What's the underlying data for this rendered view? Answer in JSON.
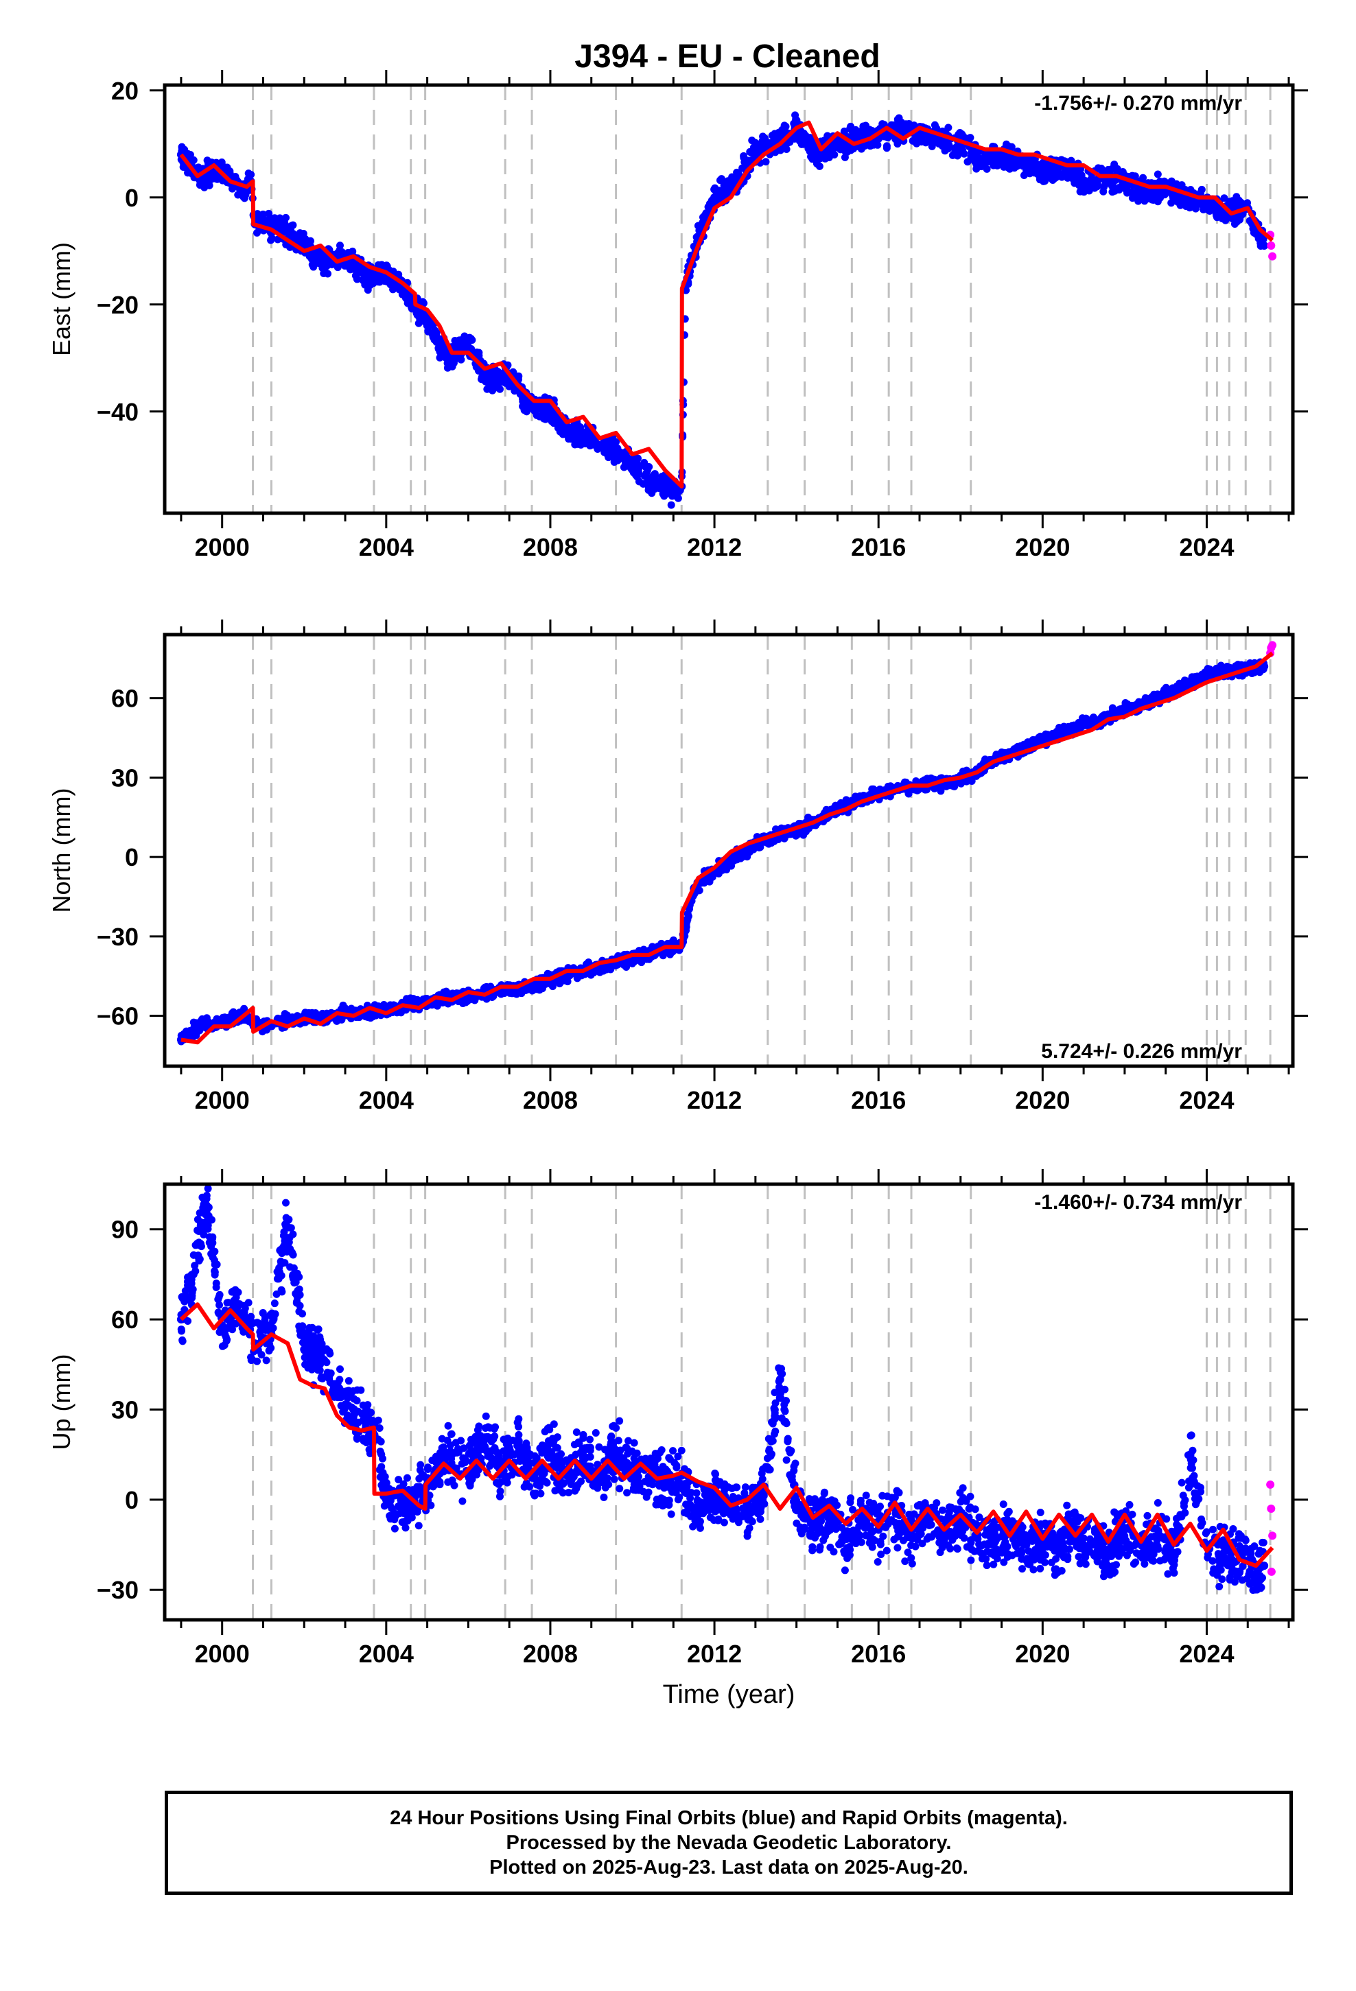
{
  "chart_data": [
    {
      "type": "scatter",
      "title": "J394  - EU - Cleaned",
      "ylabel": "East (mm)",
      "xlabel": "",
      "rate_label": "-1.756+/- 0.270 mm/yr",
      "rate_position": "top-right",
      "xlim": [
        1998.6,
        2026.1
      ],
      "ylim": [
        -59,
        21
      ],
      "xticks": [
        "2000",
        "2004",
        "2008",
        "2012",
        "2016",
        "2020",
        "2024"
      ],
      "yticks": [
        "20",
        "0",
        "−20",
        "−40"
      ],
      "ytick_values": [
        20,
        0,
        -20,
        -40
      ],
      "grid": false,
      "series": [
        {
          "color": "#0000ff",
          "kind": "points",
          "x": [
            1999.0,
            1999.5,
            2000.0,
            2000.5,
            2000.7,
            2000.8,
            2001.5,
            2002.0,
            2002.5,
            2003.0,
            2003.5,
            2004.0,
            2004.5,
            2004.7,
            2005.0,
            2005.5,
            2006.0,
            2006.5,
            2007.0,
            2007.5,
            2008.0,
            2008.5,
            2009.0,
            2009.5,
            2010.0,
            2010.5,
            2011.0,
            2011.2,
            2011.3,
            2011.6,
            2012.0,
            2012.5,
            2013.0,
            2013.5,
            2014.0,
            2014.5,
            2015.0,
            2015.5,
            2016.0,
            2016.5,
            2017.0,
            2017.5,
            2018.0,
            2018.5,
            2019.0,
            2019.5,
            2020.0,
            2020.5,
            2021.0,
            2021.5,
            2022.0,
            2022.5,
            2023.0,
            2023.5,
            2024.0,
            2024.5,
            2025.0,
            2025.4
          ],
          "y": [
            8,
            4,
            5,
            1,
            3,
            -5,
            -6,
            -9,
            -12,
            -11,
            -15,
            -14,
            -18,
            -20,
            -23,
            -30,
            -28,
            -34,
            -33,
            -39,
            -40,
            -44,
            -45,
            -47,
            -50,
            -53,
            -55,
            -54,
            -16,
            -8,
            0,
            2,
            9,
            10,
            13,
            8,
            10,
            11,
            11,
            13,
            12,
            11,
            10,
            7,
            8,
            7,
            5,
            6,
            3,
            4,
            3,
            1,
            2,
            0,
            -1,
            -3,
            -2,
            -9
          ]
        },
        {
          "color": "#ff00ff",
          "kind": "points",
          "x": [
            2025.55,
            2025.57,
            2025.6
          ],
          "y": [
            -7,
            -9,
            -11
          ]
        },
        {
          "color": "#ff0000",
          "kind": "model_line",
          "x": [
            1999.0,
            1999.4,
            1999.8,
            2000.2,
            2000.6,
            2000.75,
            2000.76,
            2001.2,
            2001.6,
            2002.0,
            2002.4,
            2002.8,
            2003.2,
            2003.6,
            2004.0,
            2004.4,
            2004.7,
            2004.71,
            2005.0,
            2005.3,
            2005.6,
            2006.0,
            2006.4,
            2006.8,
            2007.2,
            2007.6,
            2008.0,
            2008.4,
            2008.8,
            2009.2,
            2009.6,
            2010.0,
            2010.4,
            2010.8,
            2011.2,
            2011.21,
            2011.6,
            2012.0,
            2012.4,
            2012.8,
            2013.2,
            2013.6,
            2014.0,
            2014.3,
            2014.6,
            2015.0,
            2015.4,
            2015.8,
            2016.2,
            2016.6,
            2017.0,
            2017.4,
            2017.8,
            2018.2,
            2018.6,
            2019.0,
            2019.4,
            2019.8,
            2020.2,
            2020.6,
            2021.0,
            2021.4,
            2021.8,
            2022.2,
            2022.6,
            2023.0,
            2023.4,
            2023.8,
            2024.2,
            2024.6,
            2025.0,
            2025.3,
            2025.6
          ],
          "y": [
            8,
            4,
            6,
            3,
            2,
            3,
            -5,
            -6,
            -8,
            -10,
            -9,
            -12,
            -11,
            -13,
            -14,
            -16,
            -18,
            -20,
            -21,
            -24,
            -29,
            -29,
            -32,
            -31,
            -35,
            -38,
            -38,
            -42,
            -41,
            -45,
            -44,
            -48,
            -47,
            -51,
            -54,
            -17,
            -9,
            -2,
            0,
            5,
            8,
            10,
            13,
            14,
            9,
            12,
            10,
            11,
            13,
            11,
            13,
            12,
            11,
            10,
            9,
            9,
            8,
            8,
            7,
            6,
            6,
            4,
            4,
            3,
            2,
            2,
            1,
            0,
            0,
            -3,
            -2,
            -6,
            -8
          ]
        }
      ],
      "breaks": [
        2000.75,
        2001.2,
        2003.7,
        2004.6,
        2004.95,
        2006.9,
        2007.55,
        2009.6,
        2011.2,
        2013.3,
        2014.2,
        2015.35,
        2016.25,
        2016.8,
        2018.25,
        2024.0,
        2024.25,
        2024.55,
        2024.95,
        2025.55
      ]
    },
    {
      "type": "scatter",
      "title": "",
      "ylabel": "North (mm)",
      "xlabel": "",
      "rate_label": "5.724+/- 0.226 mm/yr",
      "rate_position": "bottom-right",
      "xlim": [
        1998.6,
        2026.1
      ],
      "ylim": [
        -79,
        84
      ],
      "xticks": [
        "2000",
        "2004",
        "2008",
        "2012",
        "2016",
        "2020",
        "2024"
      ],
      "yticks": [
        "60",
        "30",
        "0",
        "−30",
        "−60"
      ],
      "ytick_values": [
        60,
        30,
        0,
        -30,
        -60
      ],
      "grid": false,
      "series": [
        {
          "color": "#0000ff",
          "kind": "points",
          "x": [
            1999.0,
            1999.5,
            2000.0,
            2000.5,
            2001.0,
            2001.5,
            2002.0,
            2002.5,
            2003.0,
            2003.5,
            2004.0,
            2004.5,
            2005.0,
            2005.5,
            2006.0,
            2006.5,
            2007.0,
            2007.5,
            2008.0,
            2008.5,
            2009.0,
            2009.5,
            2010.0,
            2010.5,
            2011.0,
            2011.2,
            2011.5,
            2012.0,
            2012.5,
            2013.0,
            2013.5,
            2014.0,
            2014.5,
            2015.0,
            2015.5,
            2016.0,
            2016.5,
            2017.0,
            2017.5,
            2018.0,
            2018.5,
            2019.0,
            2019.5,
            2020.0,
            2020.5,
            2021.0,
            2021.5,
            2022.0,
            2022.5,
            2023.0,
            2023.5,
            2024.0,
            2024.5,
            2025.0,
            2025.4
          ],
          "y": [
            -69,
            -63,
            -63,
            -60,
            -64,
            -62,
            -61,
            -61,
            -59,
            -59,
            -58,
            -56,
            -55,
            -53,
            -53,
            -51,
            -50,
            -49,
            -46,
            -44,
            -42,
            -40,
            -38,
            -36,
            -34,
            -33,
            -12,
            -5,
            0,
            5,
            8,
            10,
            14,
            18,
            21,
            24,
            26,
            27,
            28,
            29,
            33,
            38,
            41,
            44,
            47,
            50,
            52,
            56,
            58,
            61,
            65,
            69,
            70,
            71,
            72
          ]
        },
        {
          "color": "#ff00ff",
          "kind": "points",
          "x": [
            2025.55,
            2025.57,
            2025.6
          ],
          "y": [
            77,
            79,
            80
          ]
        },
        {
          "color": "#ff0000",
          "kind": "model_line",
          "x": [
            1999.0,
            1999.4,
            1999.8,
            2000.2,
            2000.6,
            2000.75,
            2000.76,
            2001.2,
            2001.6,
            2002.0,
            2002.4,
            2002.8,
            2003.2,
            2003.6,
            2004.0,
            2004.4,
            2004.8,
            2005.2,
            2005.6,
            2006.0,
            2006.4,
            2006.8,
            2007.2,
            2007.6,
            2008.0,
            2008.4,
            2008.8,
            2009.2,
            2009.6,
            2010.0,
            2010.4,
            2010.8,
            2011.2,
            2011.21,
            2011.6,
            2012.0,
            2012.4,
            2012.8,
            2013.2,
            2013.6,
            2014.0,
            2014.4,
            2014.8,
            2015.2,
            2015.6,
            2016.0,
            2016.4,
            2016.8,
            2017.2,
            2017.6,
            2018.0,
            2018.4,
            2018.8,
            2019.2,
            2019.6,
            2020.0,
            2020.4,
            2020.8,
            2021.2,
            2021.6,
            2022.0,
            2022.4,
            2022.8,
            2023.2,
            2023.6,
            2024.0,
            2024.4,
            2024.8,
            2025.2,
            2025.6
          ],
          "y": [
            -69,
            -70,
            -64,
            -64,
            -59,
            -57,
            -66,
            -62,
            -64,
            -61,
            -63,
            -59,
            -60,
            -57,
            -59,
            -56,
            -57,
            -53,
            -54,
            -51,
            -52,
            -49,
            -49,
            -46,
            -46,
            -43,
            -43,
            -40,
            -39,
            -37,
            -37,
            -34,
            -34,
            -21,
            -8,
            -4,
            2,
            5,
            7,
            9,
            11,
            13,
            16,
            18,
            21,
            23,
            25,
            27,
            27,
            29,
            30,
            32,
            36,
            38,
            40,
            42,
            44,
            46,
            48,
            52,
            53,
            56,
            58,
            60,
            63,
            66,
            68,
            70,
            72,
            77
          ]
        }
      ],
      "breaks": [
        2000.75,
        2001.2,
        2003.7,
        2004.6,
        2004.95,
        2006.9,
        2007.55,
        2009.6,
        2011.2,
        2013.3,
        2014.2,
        2015.35,
        2016.25,
        2016.8,
        2018.25,
        2024.0,
        2024.25,
        2024.55,
        2024.95,
        2025.55
      ]
    },
    {
      "type": "scatter",
      "title": "",
      "ylabel": "Up (mm)",
      "xlabel": "Time (year)",
      "rate_label": "-1.460+/- 0.734 mm/yr",
      "rate_position": "top-right",
      "xlim": [
        1998.6,
        2026.1
      ],
      "ylim": [
        -40,
        105
      ],
      "xticks": [
        "2000",
        "2004",
        "2008",
        "2012",
        "2016",
        "2020",
        "2024"
      ],
      "yticks": [
        "90",
        "60",
        "30",
        "0",
        "−30"
      ],
      "ytick_values": [
        90,
        60,
        30,
        0,
        -30
      ],
      "grid": false,
      "series": [
        {
          "color": "#0000ff",
          "kind": "points",
          "x": [
            1999.0,
            1999.3,
            1999.6,
            2000.0,
            2000.4,
            2000.8,
            2001.2,
            2001.6,
            2002.0,
            2002.4,
            2002.8,
            2003.2,
            2003.6,
            2003.8,
            2004.0,
            2004.4,
            2004.8,
            2005.2,
            2005.6,
            2006.0,
            2006.4,
            2006.8,
            2007.2,
            2007.6,
            2008.0,
            2008.4,
            2008.8,
            2009.2,
            2009.6,
            2010.0,
            2010.4,
            2010.8,
            2011.2,
            2011.6,
            2012.0,
            2012.4,
            2012.8,
            2013.2,
            2013.6,
            2014.0,
            2014.4,
            2014.8,
            2015.2,
            2015.6,
            2016.0,
            2016.4,
            2016.8,
            2017.2,
            2017.6,
            2018.0,
            2018.4,
            2018.8,
            2019.2,
            2019.6,
            2020.0,
            2020.4,
            2020.8,
            2021.2,
            2021.6,
            2022.0,
            2022.4,
            2022.8,
            2023.2,
            2023.6,
            2024.0,
            2024.4,
            2024.8,
            2025.2,
            2025.4
          ],
          "y": [
            60,
            75,
            100,
            58,
            65,
            52,
            55,
            93,
            50,
            48,
            35,
            30,
            22,
            20,
            0,
            -2,
            2,
            10,
            15,
            8,
            20,
            10,
            18,
            8,
            15,
            8,
            14,
            9,
            16,
            8,
            12,
            5,
            8,
            -5,
            2,
            -5,
            -3,
            2,
            40,
            -2,
            -8,
            -5,
            -12,
            -6,
            -10,
            -3,
            -12,
            -6,
            -10,
            -6,
            -12,
            -15,
            -10,
            -15,
            -12,
            -16,
            -10,
            -15,
            -18,
            -10,
            -15,
            -12,
            -18,
            15,
            -15,
            -20,
            -17,
            -25,
            -22
          ]
        },
        {
          "color": "#ff00ff",
          "kind": "points",
          "x": [
            2025.55,
            2025.57,
            2025.6,
            2025.58
          ],
          "y": [
            5,
            -3,
            -12,
            -24
          ]
        },
        {
          "color": "#ff0000",
          "kind": "model_line",
          "x": [
            1999.0,
            1999.4,
            1999.8,
            2000.2,
            2000.6,
            2000.75,
            2000.76,
            2001.2,
            2001.6,
            2001.9,
            2002.2,
            2002.5,
            2002.8,
            2003.1,
            2003.4,
            2003.7,
            2003.71,
            2004.0,
            2004.4,
            2004.8,
            2004.95,
            2004.96,
            2005.4,
            2005.8,
            2006.2,
            2006.6,
            2007.0,
            2007.4,
            2007.8,
            2008.2,
            2008.6,
            2009.0,
            2009.4,
            2009.8,
            2010.2,
            2010.6,
            2011.0,
            2011.2,
            2011.6,
            2012.0,
            2012.4,
            2012.8,
            2013.2,
            2013.6,
            2014.0,
            2014.4,
            2014.8,
            2015.2,
            2015.6,
            2016.0,
            2016.4,
            2016.8,
            2017.2,
            2017.6,
            2018.0,
            2018.4,
            2018.8,
            2019.2,
            2019.6,
            2020.0,
            2020.4,
            2020.8,
            2021.2,
            2021.6,
            2022.0,
            2022.4,
            2022.8,
            2023.2,
            2023.6,
            2024.0,
            2024.4,
            2024.8,
            2025.2,
            2025.6
          ],
          "y": [
            60,
            65,
            57,
            63,
            57,
            55,
            50,
            55,
            52,
            40,
            38,
            37,
            28,
            24,
            23,
            24,
            2,
            2,
            3,
            -2,
            -3,
            5,
            12,
            7,
            13,
            7,
            13,
            7,
            13,
            7,
            13,
            7,
            13,
            7,
            12,
            7,
            8,
            9,
            6,
            4,
            -2,
            0,
            5,
            -3,
            4,
            -6,
            -2,
            -8,
            -3,
            -9,
            -1,
            -10,
            -3,
            -10,
            -5,
            -11,
            -4,
            -12,
            -4,
            -13,
            -5,
            -12,
            -5,
            -14,
            -5,
            -14,
            -5,
            -15,
            -8,
            -17,
            -10,
            -20,
            -22,
            -16
          ]
        }
      ],
      "breaks": [
        2000.75,
        2001.2,
        2003.7,
        2004.6,
        2004.95,
        2006.9,
        2007.55,
        2009.6,
        2011.2,
        2013.3,
        2014.2,
        2015.35,
        2016.25,
        2016.8,
        2018.25,
        2024.0,
        2024.25,
        2024.55,
        2024.95,
        2025.55
      ]
    }
  ],
  "footer": {
    "line1": "24 Hour Positions Using Final Orbits (blue) and Rapid Orbits (magenta).",
    "line2": "Processed by the Nevada Geodetic Laboratory.",
    "line3": "Plotted on 2025-Aug-23. Last data on 2025-Aug-20."
  }
}
